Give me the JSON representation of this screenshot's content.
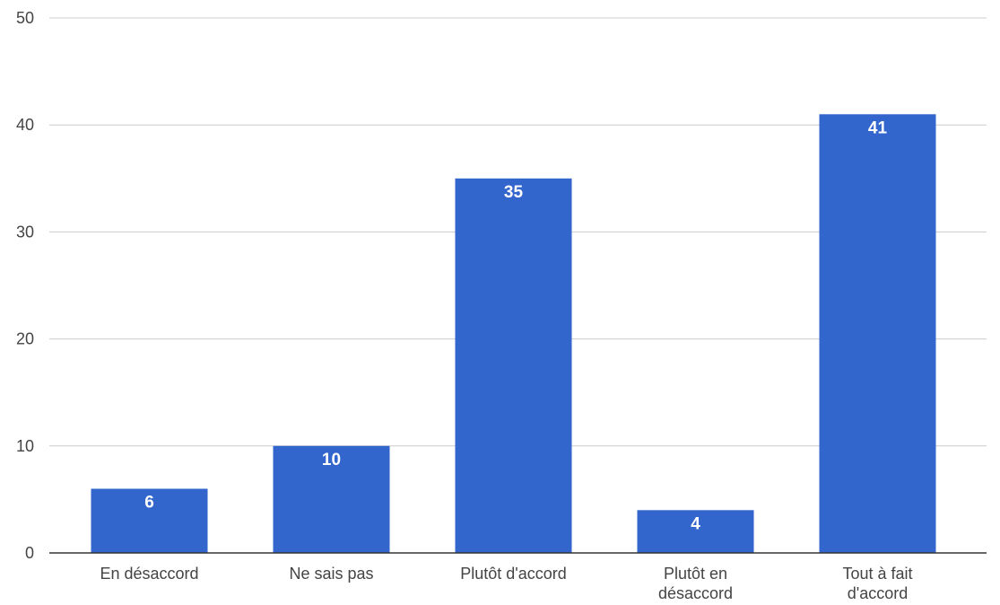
{
  "chart_data": {
    "type": "bar",
    "categories": [
      "En désaccord",
      "Ne sais pas",
      "Plutôt d'accord",
      "Plutôt en désaccord",
      "Tout à fait d'accord"
    ],
    "category_label_lines": [
      [
        "En désaccord"
      ],
      [
        "Ne sais pas"
      ],
      [
        "Plutôt d'accord"
      ],
      [
        "Plutôt en",
        "désaccord"
      ],
      [
        "Tout à fait",
        "d'accord"
      ]
    ],
    "values": [
      6,
      10,
      35,
      4,
      41
    ],
    "data_labels": [
      "6",
      "10",
      "35",
      "4",
      "41"
    ],
    "title": "",
    "xlabel": "",
    "ylabel": "",
    "ylim": [
      0,
      50
    ],
    "yticks": [
      0,
      10,
      20,
      30,
      40,
      50
    ],
    "ytick_labels": [
      "0",
      "10",
      "20",
      "30",
      "40",
      "50"
    ],
    "grid": true,
    "legend": "none",
    "bar_color": "#3366cc",
    "label_color": "#ffffff"
  }
}
